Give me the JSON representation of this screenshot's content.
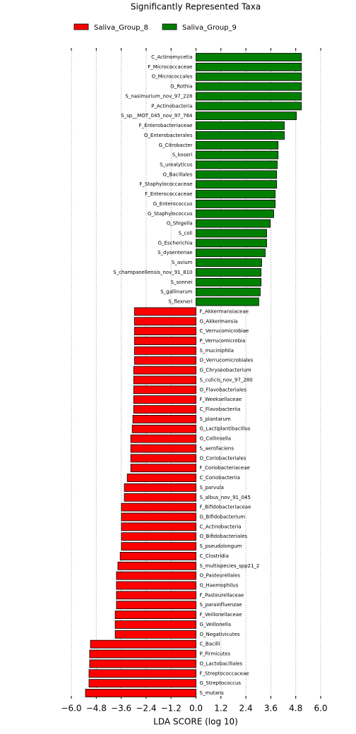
{
  "chart_data": {
    "type": "bar",
    "orientation": "horizontal",
    "title": "Significantly Represented Taxa",
    "xlabel": "LDA SCORE (log 10)",
    "categories": [
      "C_Actinomycetia",
      "F_Micrococcaceae",
      "O_Micrococcales",
      "G_Rothia",
      "S_nasimurium_nov_97_228",
      "P_Actinobacteria",
      "S_sp__MOT_045_nov_97_764",
      "F_Enterobacteriaceae",
      "O_Enterobacterales",
      "G_Citrobacter",
      "S_koseri",
      "S_urealyticus",
      "O_Bacillales",
      "F_Staphylococcaceae",
      "F_Enterococcaceae",
      "G_Enterococcus",
      "G_Staphylococcus",
      "G_Shigella",
      "S_coli",
      "G_Escherichia",
      "S_dysenteriae",
      "S_avium",
      "S_champanellensis_nov_91_810",
      "S_sonnei",
      "S_gallinarum",
      "S_flexneri",
      "F_Akkermansiaceae",
      "G_Akkermansia",
      "C_Verrucomicrobiae",
      "P_Verrucomicrobia",
      "S_muciniphila",
      "O_Verrucomicrobiales",
      "G_Chryseobacterium",
      "S_culicis_nov_97_280",
      "O_Flavobacteriales",
      "F_Weeksellaceae",
      "C_Flavobacteriia",
      "S_plantarum",
      "G_Lactiplantibacillus",
      "G_Collinsella",
      "S_aerofaciens",
      "O_Coriobacteriales",
      "F_Coriobacteriaceae",
      "C_Coriobacteriia",
      "S_parvula",
      "S_albus_nov_91_045",
      "F_Bifidobacteriaceae",
      "G_Bifidobacterium",
      "C_Actinobacteria",
      "O_Bifidobacteriales",
      "S_pseudolongum",
      "C_Clostridia",
      "S_multispecies_spp21_2",
      "O_Pasteurellales",
      "G_Haemophilus",
      "F_Pasteurellaceae",
      "S_parainfluenzae",
      "F_Veillonellaceae",
      "G_Veillonella",
      "O_Negativicutes",
      "C_Bacilli",
      "P_Firmicutes",
      "O_Lactobacillales",
      "F_Streptococcaceae",
      "G_Streptococcus",
      "S_mutans"
    ],
    "series": [
      {
        "name": "Saliva_Group_8",
        "color": "#ff0000",
        "values": [
          null,
          null,
          null,
          null,
          null,
          null,
          null,
          null,
          null,
          null,
          null,
          null,
          null,
          null,
          null,
          null,
          null,
          null,
          null,
          null,
          null,
          null,
          null,
          null,
          null,
          null,
          -2.96,
          -2.96,
          -2.96,
          -2.96,
          -2.96,
          -2.96,
          -3.0,
          -3.0,
          -3.0,
          -3.0,
          -3.0,
          -3.04,
          -3.07,
          -3.14,
          -3.14,
          -3.14,
          -3.14,
          -3.31,
          -3.45,
          -3.45,
          -3.59,
          -3.59,
          -3.59,
          -3.59,
          -3.59,
          -3.65,
          -3.76,
          -3.83,
          -3.83,
          -3.83,
          -3.83,
          -3.89,
          -3.89,
          -3.89,
          -5.08,
          -5.12,
          -5.12,
          -5.15,
          -5.15,
          -5.32
        ]
      },
      {
        "name": "Saliva_Group_9",
        "color": "#008000",
        "values": [
          5.07,
          5.07,
          5.07,
          5.07,
          5.07,
          5.07,
          4.83,
          4.25,
          4.25,
          3.95,
          3.95,
          3.91,
          3.88,
          3.88,
          3.81,
          3.81,
          3.74,
          3.57,
          3.4,
          3.4,
          3.33,
          3.16,
          3.13,
          3.13,
          3.09,
          3.02,
          null,
          null,
          null,
          null,
          null,
          null,
          null,
          null,
          null,
          null,
          null,
          null,
          null,
          null,
          null,
          null,
          null,
          null,
          null,
          null,
          null,
          null,
          null,
          null,
          null,
          null,
          null,
          null,
          null,
          null,
          null,
          null,
          null,
          null,
          null,
          null,
          null,
          null,
          null,
          null
        ]
      }
    ],
    "xlim": [
      -6.0,
      6.0
    ],
    "xticks": [
      {
        "value": -6.0,
        "label": "−6.0"
      },
      {
        "value": -4.8,
        "label": "−4.8"
      },
      {
        "value": -3.6,
        "label": "−3.6"
      },
      {
        "value": -2.4,
        "label": "−2.4"
      },
      {
        "value": -1.2,
        "label": "−1.2"
      },
      {
        "value": 0,
        "label": "0.0"
      },
      1.2,
      2.4,
      3.6,
      4.8,
      {
        "value": 6.0,
        "label": "6.0"
      }
    ],
    "grid": true
  }
}
